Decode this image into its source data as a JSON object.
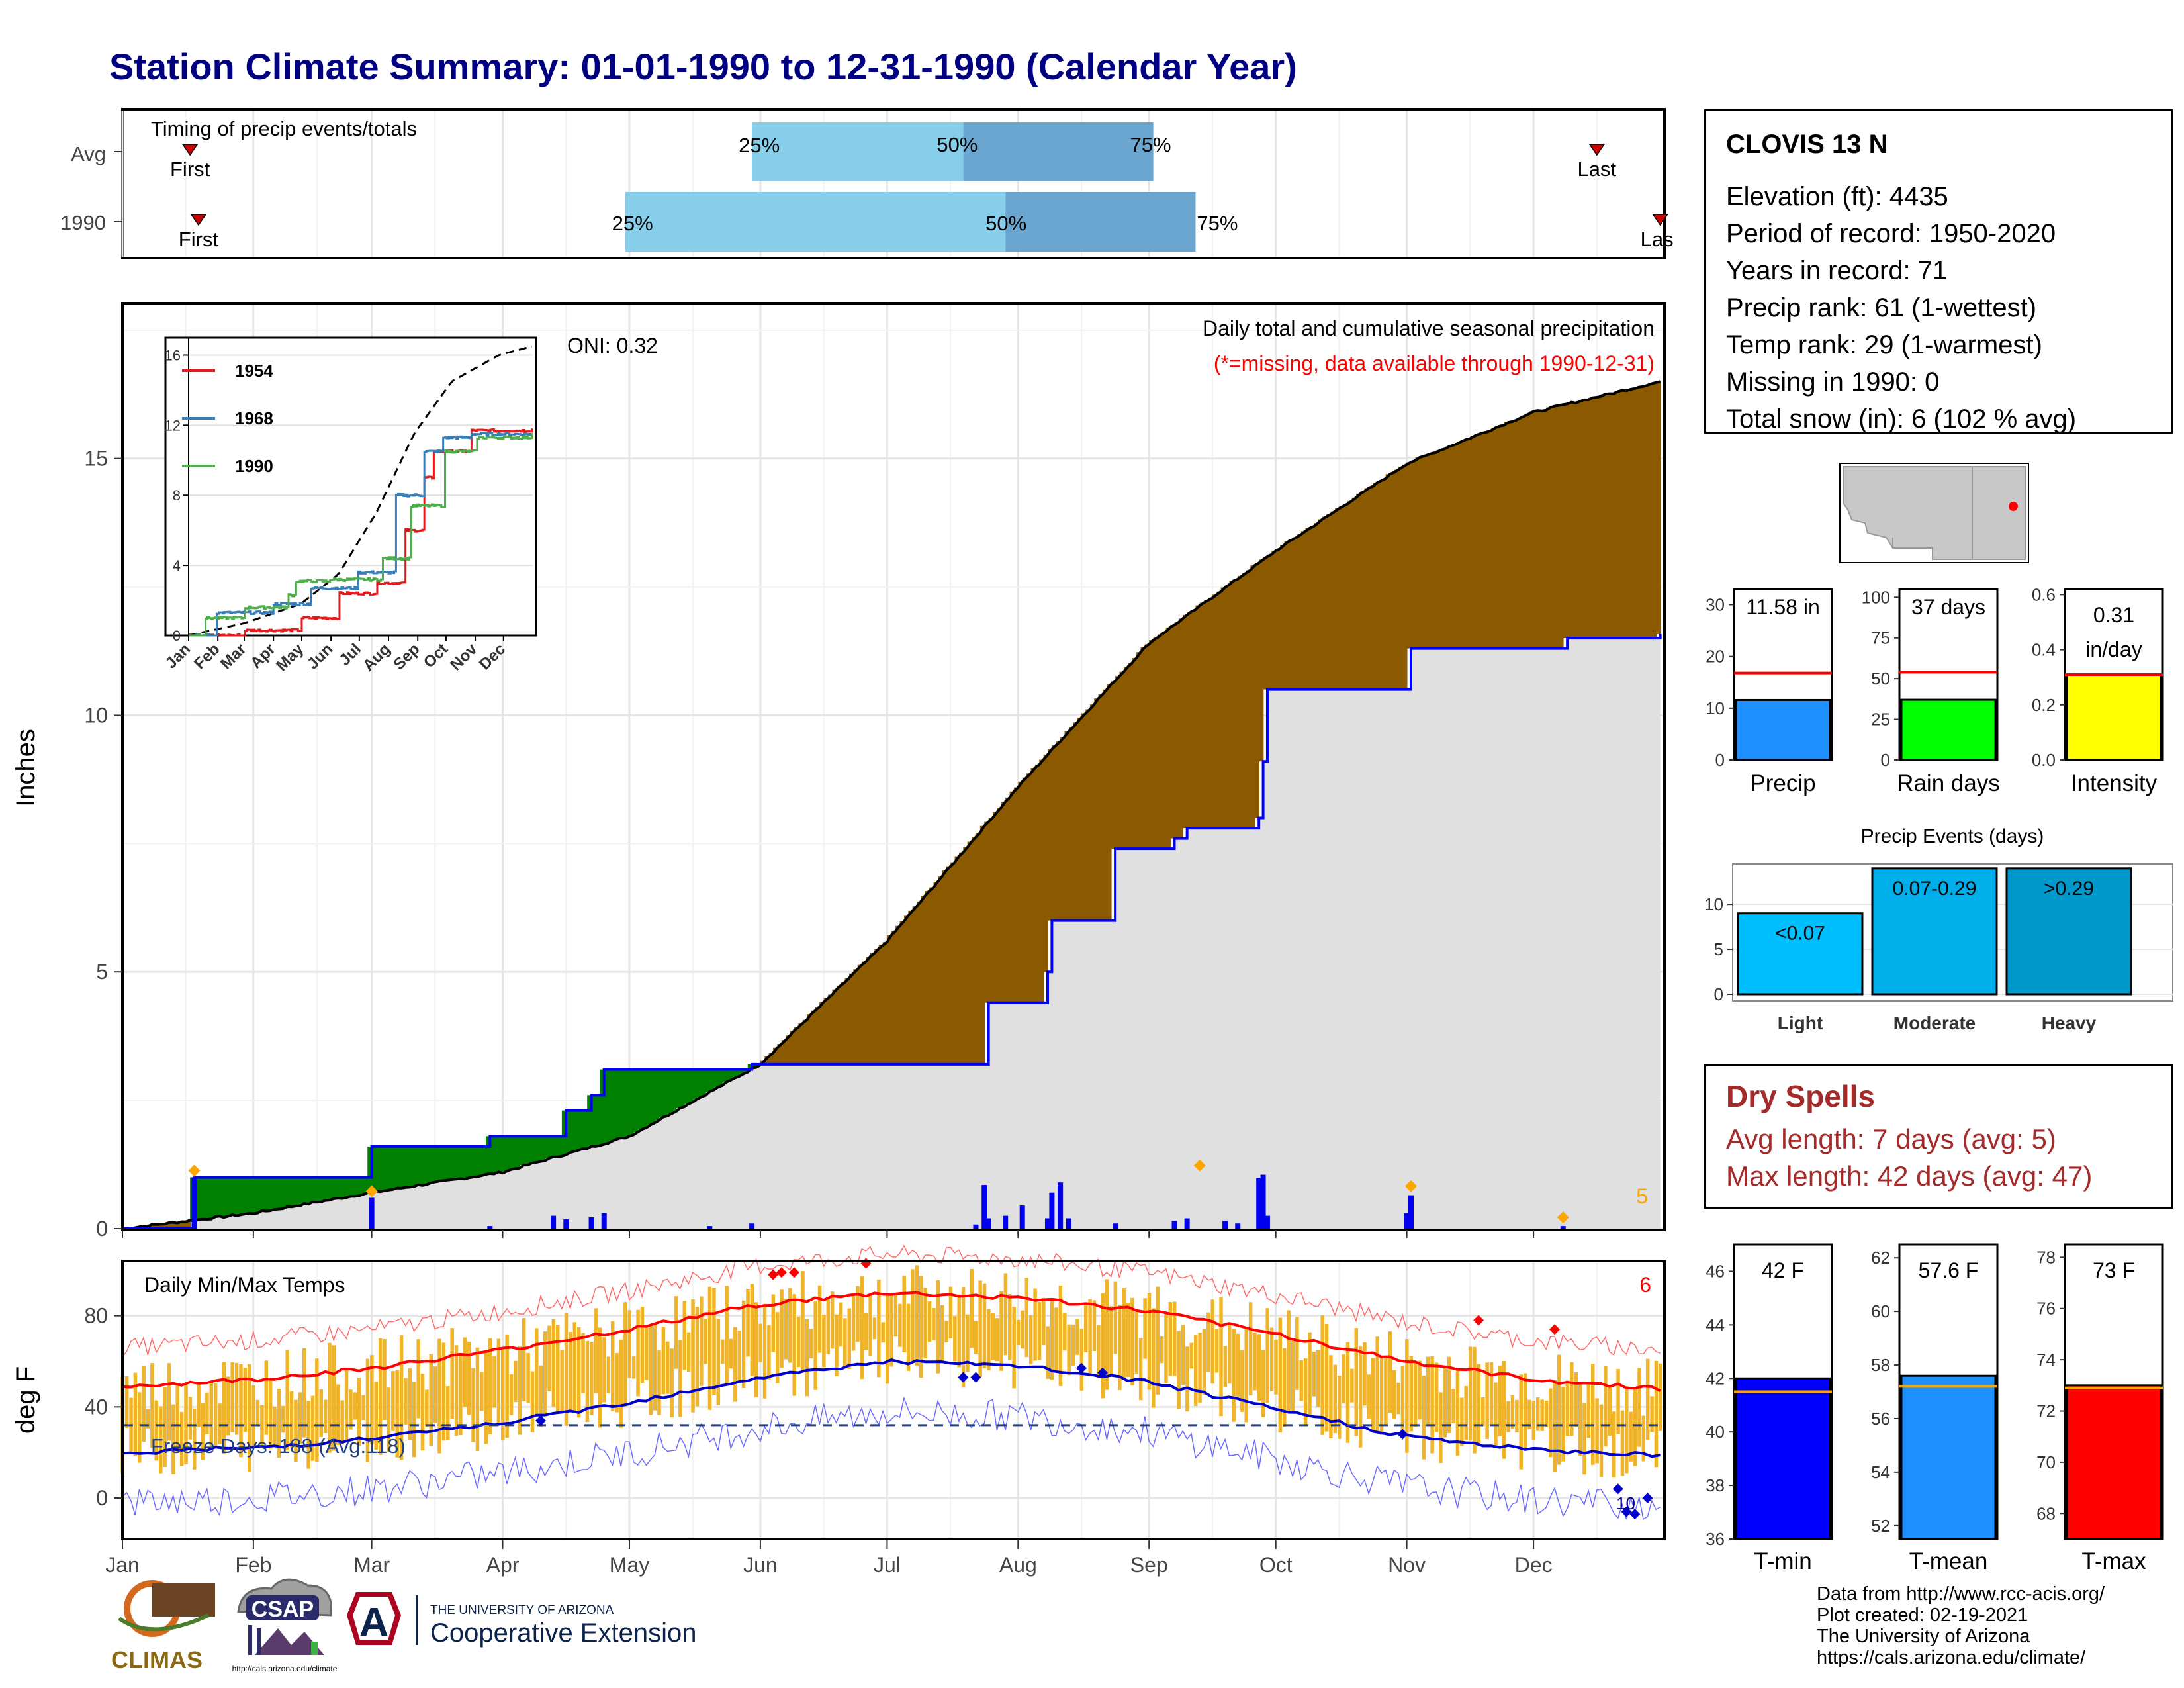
{
  "title": "Station Climate Summary: 01-01-1990 to 12-31-1990 (Calendar Year)",
  "colors": {
    "title": "#000080",
    "light_blue": "#87ceeb",
    "mid_blue": "#6aa6cf",
    "cum_precip_fill": "#8b5a00",
    "deficit_fill": "#008000",
    "avg_fill": "#e0e0e0",
    "avg_line": "#0000ff",
    "temp_bar": "#f0b428",
    "tmax_line": "#ff0000",
    "tmin_line": "#0000cd",
    "dry": "#a52a2a"
  },
  "timing_panel": {
    "title": "Timing of precip events/totals",
    "row_labels": [
      "Avg",
      "1990"
    ],
    "first_label": "First",
    "last_label": "Last",
    "last_label_clipped": "Las",
    "pct_labels": [
      "25%",
      "50%",
      "75%"
    ]
  },
  "precip_panel": {
    "ylabel": "Inches",
    "header": "Daily total and cumulative seasonal precipitation",
    "subheader": "(*=missing, data available through 1990-12-31)",
    "oni": "ONI: 0.32",
    "count_label": "5",
    "yticks": [
      "0",
      "5",
      "10",
      "15"
    ]
  },
  "inset": {
    "legend": [
      "1954",
      "1968",
      "1990"
    ],
    "legend_colors": [
      "#e41a1c",
      "#377eb8",
      "#4daf4a"
    ],
    "yticks": [
      "0",
      "4",
      "8",
      "12",
      "16"
    ],
    "months": [
      "Jan",
      "Feb",
      "Mar",
      "Apr",
      "May",
      "Jun",
      "Jul",
      "Aug",
      "Sep",
      "Oct",
      "Nov",
      "Dec"
    ]
  },
  "temp_panel": {
    "ylabel": "deg F",
    "title": "Daily Min/Max Temps",
    "freeze_label": "Freeze Days: 188 (Avg:118)",
    "count_label": "6",
    "count_label_low": "10",
    "yticks": [
      "0",
      "40",
      "80"
    ]
  },
  "months": [
    "Jan",
    "Feb",
    "Mar",
    "Apr",
    "May",
    "Jun",
    "Jul",
    "Aug",
    "Sep",
    "Oct",
    "Nov",
    "Dec"
  ],
  "station": {
    "name": "CLOVIS 13 N",
    "lines": [
      "Elevation (ft): 4435",
      "Period of record: 1950-2020",
      "Years in record: 71",
      "Precip rank: 61 (1-wettest)",
      "Temp rank: 29 (1-warmest)",
      "Missing in 1990: 0",
      "Total snow (in): 6 (102 % avg)"
    ]
  },
  "summary_bars": {
    "precip": {
      "label": "Precip",
      "value_label": "11.58 in",
      "yticks": [
        "0",
        "10",
        "20",
        "30"
      ]
    },
    "rain_days": {
      "label": "Rain days",
      "value_label": "37 days",
      "yticks": [
        "0",
        "25",
        "50",
        "75",
        "100"
      ]
    },
    "intensity": {
      "label": "Intensity",
      "value_label1": "0.31",
      "value_label2": "in/day",
      "yticks": [
        "0.0",
        "0.2",
        "0.4",
        "0.6"
      ]
    }
  },
  "events": {
    "title": "Precip Events (days)",
    "yticks": [
      "0",
      "5",
      "10"
    ],
    "labels": [
      "Light",
      "Moderate",
      "Heavy"
    ],
    "bar_labels": [
      "<0.07",
      "0.07-0.29",
      ">0.29"
    ]
  },
  "dry_spells": {
    "title": "Dry Spells",
    "avg": "Avg length: 7 days (avg: 5)",
    "max": "Max length: 42 days (avg: 47)"
  },
  "temp_bars": {
    "tmin": {
      "label": "T-min",
      "value_label": "42 F",
      "yticks": [
        "36",
        "38",
        "40",
        "42",
        "44",
        "46"
      ]
    },
    "tmean": {
      "label": "T-mean",
      "value_label": "57.6 F",
      "yticks": [
        "52",
        "54",
        "56",
        "58",
        "60",
        "62"
      ]
    },
    "tmax": {
      "label": "T-max",
      "value_label": "73 F",
      "yticks": [
        "68",
        "70",
        "72",
        "74",
        "76",
        "78"
      ]
    }
  },
  "footer": [
    "Data from http://www.rcc-acis.org/",
    "Plot created: 02-19-2021",
    "The University of Arizona",
    "https://cals.arizona.edu/climate/"
  ],
  "logos": {
    "climas": "CLIMAS",
    "csap": "CSAP",
    "csap_url": "http://cals.arizona.edu/climate",
    "ua_small": "THE UNIVERSITY OF ARIZONA",
    "ua_big": "Cooperative Extension",
    "ua_letter": "A"
  },
  "chart_data": [
    {
      "type": "bar",
      "title": "Timing of precip events/totals",
      "rows": [
        "Avg",
        "1990"
      ],
      "first_doy": [
        17,
        19
      ],
      "last_doy": [
        350,
        365
      ],
      "pct25_doy": [
        150,
        120
      ],
      "pct50_doy": [
        200,
        210
      ],
      "pct75_doy": [
        245,
        255
      ]
    },
    {
      "type": "area",
      "title": "Daily total and cumulative seasonal precipitation",
      "ylabel": "Inches",
      "ylim": [
        0,
        18
      ],
      "x_months": [
        "Jan",
        "Feb",
        "Mar",
        "Apr",
        "May",
        "Jun",
        "Jul",
        "Aug",
        "Sep",
        "Oct",
        "Nov",
        "Dec"
      ],
      "avg_cumulative": {
        "doy": [
          1,
          32,
          60,
          91,
          121,
          152,
          182,
          213,
          244,
          274,
          305,
          335,
          365
        ],
        "values": [
          0,
          0.3,
          0.7,
          1.1,
          1.8,
          3.2,
          5.6,
          8.6,
          11.4,
          13.2,
          14.9,
          15.9,
          16.5
        ]
      },
      "year_1990_cumulative": {
        "doy": [
          1,
          17,
          18,
          59,
          60,
          88,
          103,
          106,
          112,
          115,
          140,
          150,
          203,
          206,
          220,
          221,
          236,
          250,
          253,
          270,
          271,
          272,
          305,
          306,
          342,
          343,
          365
        ],
        "values": [
          0,
          0,
          1.0,
          1.0,
          1.6,
          1.8,
          1.8,
          2.3,
          2.6,
          3.1,
          3.1,
          3.2,
          3.2,
          4.4,
          5.0,
          6.0,
          7.4,
          7.6,
          7.8,
          8.0,
          9.1,
          10.5,
          10.5,
          11.3,
          11.3,
          11.5,
          11.58
        ]
      },
      "daily_max_events": {
        "doy": [
          18,
          60,
          256,
          306
        ],
        "values": [
          1.0,
          0.6,
          1.1,
          0.7
        ]
      }
    },
    {
      "type": "line",
      "title": "Cumulative precipitation inset",
      "ylim": [
        0,
        16
      ],
      "series": [
        {
          "name": "1954",
          "doy": [
            1,
            60,
            120,
            160,
            200,
            230,
            250,
            260,
            300,
            365
          ],
          "values": [
            0,
            0.3,
            1,
            2.4,
            3.0,
            6.0,
            9.0,
            10.5,
            11.7,
            11.8
          ]
        },
        {
          "name": "1968",
          "doy": [
            1,
            30,
            90,
            130,
            180,
            220,
            250,
            270,
            300,
            365
          ],
          "values": [
            0,
            1.3,
            1.8,
            2.7,
            3.6,
            8.0,
            10.5,
            11.3,
            11.5,
            11.5
          ]
        },
        {
          "name": "1990",
          "doy": [
            1,
            18,
            60,
            106,
            115,
            150,
            206,
            236,
            272,
            306,
            365
          ],
          "values": [
            0,
            1.0,
            1.6,
            2.3,
            3.1,
            3.2,
            4.4,
            7.4,
            10.5,
            11.3,
            11.6
          ]
        }
      ],
      "avg_cumulative": {
        "doy": [
          1,
          60,
          120,
          160,
          200,
          240,
          280,
          330,
          365
        ],
        "values": [
          0,
          0.7,
          1.8,
          3.5,
          7.0,
          11.5,
          14.5,
          16.0,
          16.5
        ]
      }
    },
    {
      "type": "bar",
      "title": "Daily Min/Max Temps",
      "ylabel": "deg F",
      "ylim": [
        -18,
        104
      ],
      "avg_tmax": {
        "doy": [
          1,
          32,
          60,
          91,
          121,
          152,
          182,
          213,
          244,
          274,
          305,
          335,
          365
        ],
        "values": [
          49,
          52,
          57,
          65,
          74,
          85,
          90,
          88,
          82,
          72,
          60,
          52,
          48
        ]
      },
      "avg_tmin": {
        "doy": [
          1,
          32,
          60,
          91,
          121,
          152,
          182,
          213,
          244,
          274,
          305,
          335,
          365
        ],
        "values": [
          20,
          22,
          26,
          33,
          42,
          53,
          60,
          58,
          51,
          39,
          27,
          21,
          19
        ]
      },
      "freeze_days": 188,
      "freeze_days_avg": 118
    },
    {
      "type": "bar",
      "title": "Summary",
      "categories": [
        "Precip",
        "Rain days",
        "Intensity"
      ],
      "values": [
        11.58,
        37,
        0.31
      ],
      "averages": [
        16.8,
        54,
        0.31
      ],
      "ylim": [
        [
          0,
          33
        ],
        [
          0,
          105
        ],
        [
          0,
          0.62
        ]
      ]
    },
    {
      "type": "bar",
      "title": "Precip Events (days)",
      "categories": [
        "Light",
        "Moderate",
        "Heavy"
      ],
      "values": [
        9,
        14,
        14
      ],
      "ylim": [
        0,
        14.5
      ]
    },
    {
      "type": "bar",
      "title": "Temperature summary",
      "categories": [
        "T-min",
        "T-mean",
        "T-max"
      ],
      "values": [
        42,
        57.6,
        73
      ],
      "averages": [
        41.5,
        57.2,
        72.9
      ],
      "ylim": [
        [
          36,
          47
        ],
        [
          51.5,
          62.5
        ],
        [
          67,
          78.5
        ]
      ]
    }
  ]
}
